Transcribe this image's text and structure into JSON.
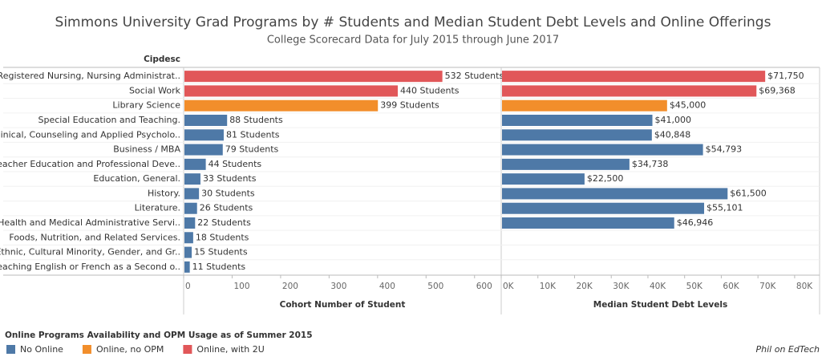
{
  "chart_data": {
    "type": "bar",
    "orientation": "horizontal",
    "title": "Simmons University Grad Programs by # Students and Median Student Debt Levels and Online Offerings",
    "subtitle": "College Scorecard Data for July 2015 through June 2017",
    "row_header": "Cipdesc",
    "categories": [
      "Registered Nursing, Nursing Administrat..",
      "Social Work",
      "Library Science",
      "Special Education and Teaching.",
      "Clinical, Counseling and Applied Psycholo..",
      "Business / MBA",
      "Teacher Education and Professional Deve..",
      "Education, General.",
      "History.",
      "Literature.",
      "Health and Medical Administrative Servi..",
      "Foods, Nutrition, and Related Services.",
      "Ethnic, Cultural Minority, Gender, and Gr..",
      "Teaching English or French as a Second o.."
    ],
    "colors": [
      "#e15759",
      "#e15759",
      "#f28e2b",
      "#4e79a7",
      "#4e79a7",
      "#4e79a7",
      "#4e79a7",
      "#4e79a7",
      "#4e79a7",
      "#4e79a7",
      "#4e79a7",
      "#4e79a7",
      "#4e79a7",
      "#4e79a7"
    ],
    "panels": [
      {
        "axis_label": "Cohort Number of Student",
        "values": [
          532,
          440,
          399,
          88,
          81,
          79,
          44,
          33,
          30,
          26,
          22,
          18,
          15,
          11
        ],
        "value_labels": [
          "532 Students",
          "440 Students",
          "399 Students",
          "88 Students",
          "81 Students",
          "79 Students",
          "44 Students",
          "33 Students",
          "30 Students",
          "26 Students",
          "22 Students",
          "18 Students",
          "15 Students",
          "11 Students"
        ],
        "xlim": [
          0,
          655
        ],
        "xticks": [
          0,
          100,
          200,
          300,
          400,
          500,
          600
        ]
      },
      {
        "axis_label": "Median Student Debt Levels",
        "values": [
          71750,
          69368,
          45000,
          41000,
          40848,
          54793,
          34738,
          22500,
          61500,
          55101,
          46946,
          null,
          null,
          null
        ],
        "value_labels": [
          "$71,750",
          "$69,368",
          "$45,000",
          "$41,000",
          "$40,848",
          "$54,793",
          "$34,738",
          "$22,500",
          "$61,500",
          "$55,101",
          "$46,946",
          null,
          null,
          null
        ],
        "xlim": [
          0,
          86800
        ],
        "xticks": [
          {
            "value": 0,
            "label": "0K"
          },
          {
            "value": 10000,
            "label": "10K"
          },
          {
            "value": 20000,
            "label": "20K"
          },
          {
            "value": 30000,
            "label": "30K"
          },
          {
            "value": 40000,
            "label": "40K"
          },
          {
            "value": 50000,
            "label": "50K"
          },
          {
            "value": 60000,
            "label": "60K"
          },
          {
            "value": 70000,
            "label": "70K"
          },
          {
            "value": 80000,
            "label": "80K"
          }
        ]
      }
    ],
    "legend": {
      "title": "Online Programs Availability and OPM Usage as of Summer 2015",
      "entries": [
        {
          "name": "No Online",
          "color": "#4e79a7"
        },
        {
          "name": "Online, no OPM",
          "color": "#f28e2b"
        },
        {
          "name": "Online, with 2U",
          "color": "#e15759"
        }
      ]
    },
    "credit": "Phil on EdTech"
  }
}
